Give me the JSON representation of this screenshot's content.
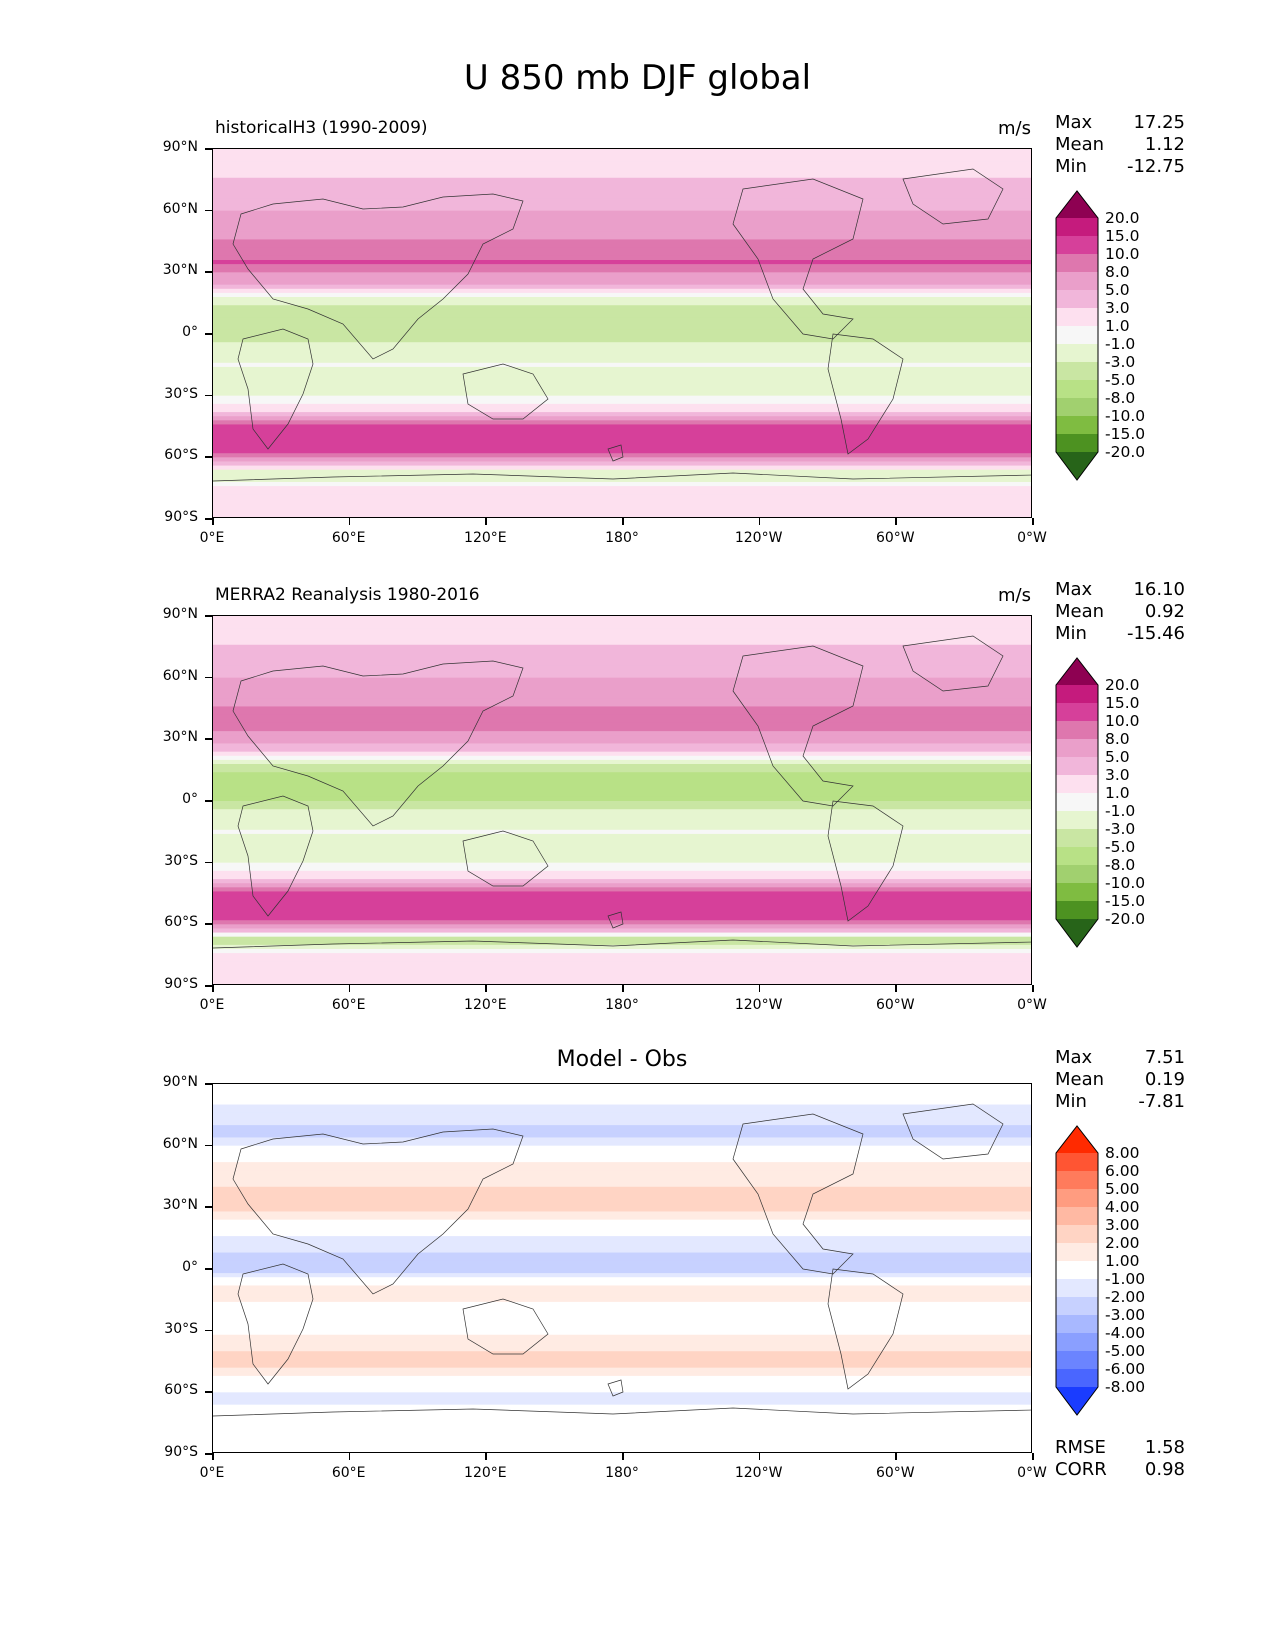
{
  "figure": {
    "title": "U 850 mb DJF global"
  },
  "chart_data": [
    {
      "type": "heatmap",
      "title": "historicalH3 (1990-2009)",
      "units": "m/s",
      "stats": {
        "Max": "17.25",
        "Mean": "1.12",
        "Min": "-12.75"
      },
      "x_ticks": [
        "0°E",
        "60°E",
        "120°E",
        "180°",
        "120°W",
        "60°W",
        "0°W"
      ],
      "y_ticks": [
        "90°N",
        "60°N",
        "30°N",
        "0°",
        "30°S",
        "60°S",
        "90°S"
      ],
      "colorbar": {
        "levels": [
          "20.0",
          "15.0",
          "10.0",
          "8.0",
          "5.0",
          "3.0",
          "1.0",
          "-1.0",
          "-3.0",
          "-5.0",
          "-8.0",
          "-10.0",
          "-15.0",
          "-20.0"
        ],
        "colors": [
          "#8e0152",
          "#c51b7d",
          "#d6409a",
          "#de77ae",
          "#ea9fca",
          "#f1b6da",
          "#fde0ef",
          "#f7f7f7",
          "#e6f5d0",
          "#c9e6a3",
          "#b8e186",
          "#a1d06f",
          "#7fbc41",
          "#4d9221",
          "#276419"
        ]
      },
      "zonal_mean": [
        {
          "lat": 90,
          "value": 1.0
        },
        {
          "lat": 75,
          "value": 3.0
        },
        {
          "lat": 60,
          "value": 5.0
        },
        {
          "lat": 45,
          "value": 8.0
        },
        {
          "lat": 35,
          "value": 10.0
        },
        {
          "lat": 25,
          "value": 5.0
        },
        {
          "lat": 15,
          "value": -3.0
        },
        {
          "lat": 5,
          "value": -5.0
        },
        {
          "lat": -5,
          "value": -3.0
        },
        {
          "lat": -15,
          "value": -1.0
        },
        {
          "lat": -25,
          "value": -3.0
        },
        {
          "lat": -35,
          "value": 1.0
        },
        {
          "lat": -45,
          "value": 10.0
        },
        {
          "lat": -52,
          "value": 15.0
        },
        {
          "lat": -60,
          "value": 8.0
        },
        {
          "lat": -68,
          "value": -3.0
        },
        {
          "lat": -75,
          "value": 1.0
        },
        {
          "lat": -90,
          "value": 1.0
        }
      ]
    },
    {
      "type": "heatmap",
      "title": "MERRA2 Reanalysis 1980-2016",
      "units": "m/s",
      "stats": {
        "Max": "16.10",
        "Mean": "0.92",
        "Min": "-15.46"
      },
      "x_ticks": [
        "0°E",
        "60°E",
        "120°E",
        "180°",
        "120°W",
        "60°W",
        "0°W"
      ],
      "y_ticks": [
        "90°N",
        "60°N",
        "30°N",
        "0°",
        "30°S",
        "60°S",
        "90°S"
      ],
      "colorbar": {
        "levels": [
          "20.0",
          "15.0",
          "10.0",
          "8.0",
          "5.0",
          "3.0",
          "1.0",
          "-1.0",
          "-3.0",
          "-5.0",
          "-8.0",
          "-10.0",
          "-15.0",
          "-20.0"
        ],
        "colors": [
          "#8e0152",
          "#c51b7d",
          "#d6409a",
          "#de77ae",
          "#ea9fca",
          "#f1b6da",
          "#fde0ef",
          "#f7f7f7",
          "#e6f5d0",
          "#c9e6a3",
          "#b8e186",
          "#a1d06f",
          "#7fbc41",
          "#4d9221",
          "#276419"
        ]
      },
      "zonal_mean": [
        {
          "lat": 90,
          "value": 1.0
        },
        {
          "lat": 75,
          "value": 3.0
        },
        {
          "lat": 60,
          "value": 5.0
        },
        {
          "lat": 45,
          "value": 8.0
        },
        {
          "lat": 35,
          "value": 8.0
        },
        {
          "lat": 25,
          "value": 3.0
        },
        {
          "lat": 15,
          "value": -5.0
        },
        {
          "lat": 5,
          "value": -8.0
        },
        {
          "lat": -5,
          "value": -3.0
        },
        {
          "lat": -15,
          "value": -1.0
        },
        {
          "lat": -25,
          "value": -3.0
        },
        {
          "lat": -35,
          "value": 1.0
        },
        {
          "lat": -45,
          "value": 10.0
        },
        {
          "lat": -52,
          "value": 15.0
        },
        {
          "lat": -60,
          "value": 8.0
        },
        {
          "lat": -68,
          "value": -5.0
        },
        {
          "lat": -75,
          "value": 1.0
        },
        {
          "lat": -90,
          "value": 1.0
        }
      ]
    },
    {
      "type": "heatmap",
      "title": "Model - Obs",
      "stats": {
        "Max": "7.51",
        "Mean": "0.19",
        "Min": "-7.81"
      },
      "extra_stats": {
        "RMSE": "1.58",
        "CORR": "0.98"
      },
      "x_ticks": [
        "0°E",
        "60°E",
        "120°E",
        "180°",
        "120°W",
        "60°W",
        "0°W"
      ],
      "y_ticks": [
        "90°N",
        "60°N",
        "30°N",
        "0°",
        "30°S",
        "60°S",
        "90°S"
      ],
      "colorbar": {
        "levels": [
          "8.00",
          "6.00",
          "5.00",
          "4.00",
          "3.00",
          "2.00",
          "1.00",
          "-1.00",
          "-2.00",
          "-3.00",
          "-4.00",
          "-5.00",
          "-6.00",
          "-8.00"
        ],
        "colors": [
          "#ff2a00",
          "#ff5533",
          "#ff7b5c",
          "#ff9c80",
          "#ffb9a3",
          "#ffd4c4",
          "#ffebe3",
          "#ffffff",
          "#e3e8ff",
          "#c7d1ff",
          "#a8b8ff",
          "#8a9fff",
          "#6b84ff",
          "#4a66ff",
          "#1a3cff"
        ]
      },
      "zonal_mean": [
        {
          "lat": 90,
          "value": 0.0
        },
        {
          "lat": 65,
          "value": -2.5
        },
        {
          "lat": 50,
          "value": 1.5
        },
        {
          "lat": 30,
          "value": 2.5
        },
        {
          "lat": 15,
          "value": -1.5
        },
        {
          "lat": 0,
          "value": -2.5
        },
        {
          "lat": -10,
          "value": 1.5
        },
        {
          "lat": -25,
          "value": 0.0
        },
        {
          "lat": -45,
          "value": 2.5
        },
        {
          "lat": -62,
          "value": -1.5
        },
        {
          "lat": -75,
          "value": 0.0
        },
        {
          "lat": -90,
          "value": 0.0
        }
      ]
    }
  ]
}
